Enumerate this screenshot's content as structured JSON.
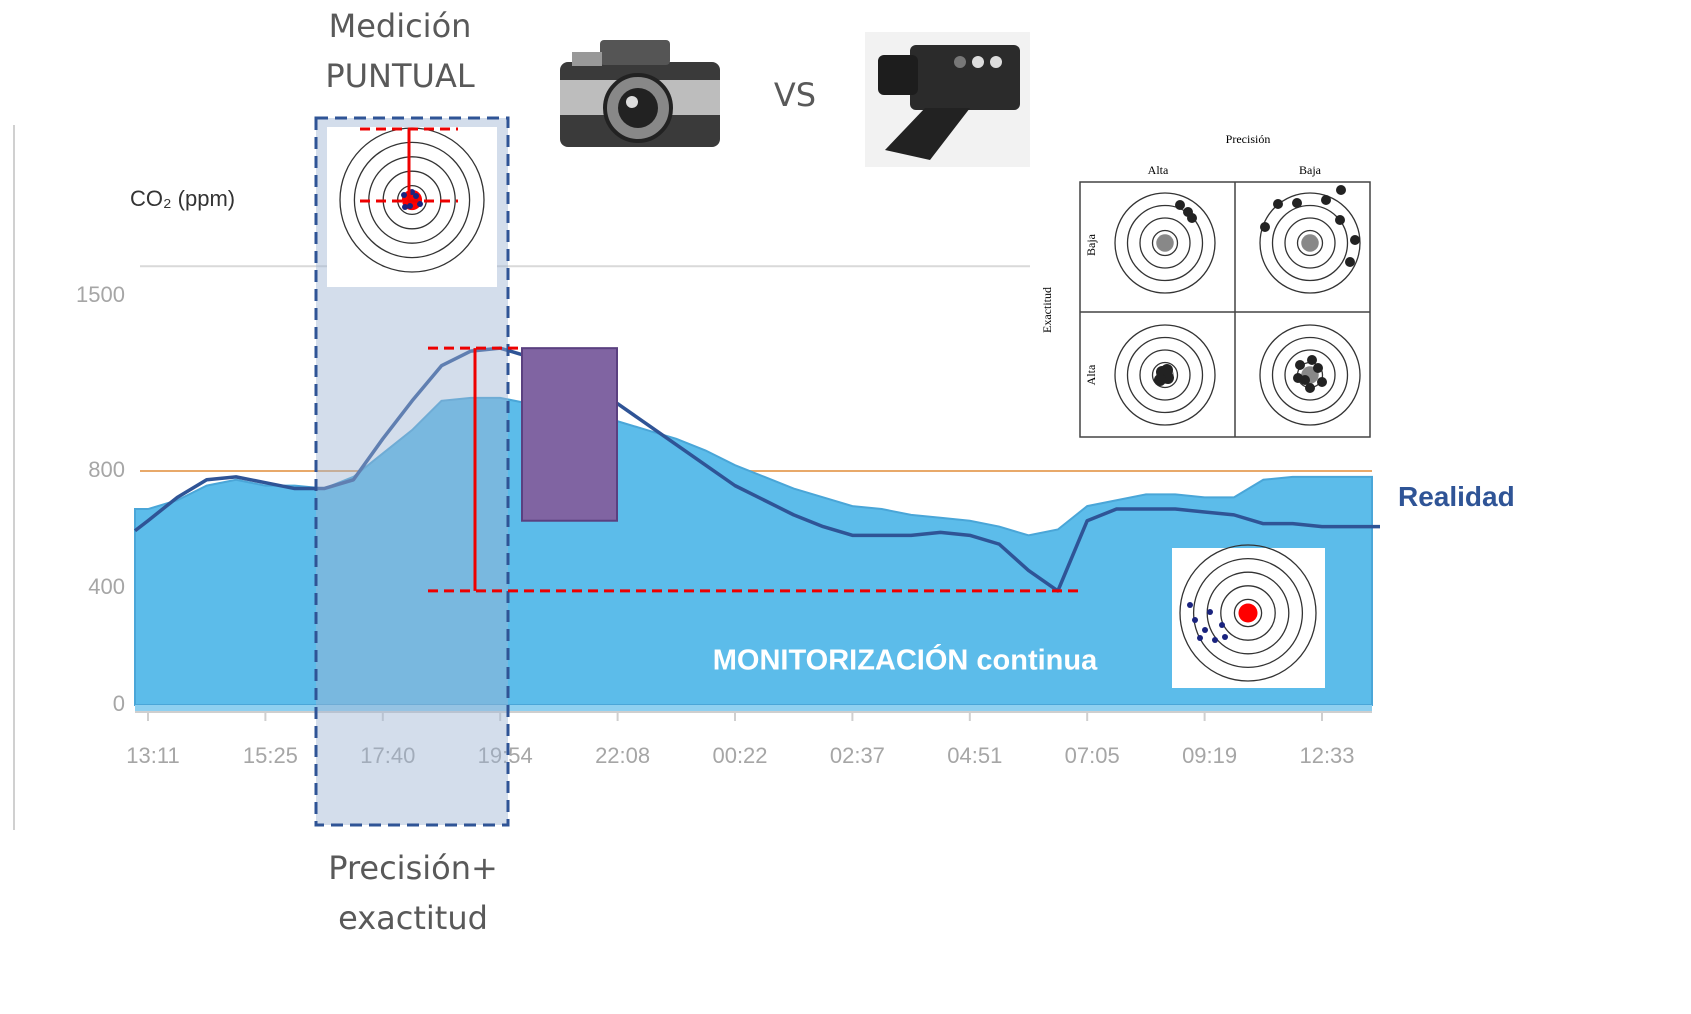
{
  "chart_data": {
    "type": "line",
    "y_label": "CO₂ (ppm)",
    "categories": [
      "13:11",
      null,
      null,
      null,
      "15:25",
      null,
      null,
      null,
      "17:40",
      null,
      null,
      null,
      "19:54",
      null,
      null,
      null,
      "22:08",
      null,
      null,
      null,
      "00:22",
      null,
      null,
      null,
      "02:37",
      null,
      null,
      null,
      "04:51",
      null,
      null,
      null,
      "07:05",
      null,
      null,
      null,
      "09:19",
      null,
      null,
      null,
      "12:33"
    ],
    "series": [
      {
        "type": "area",
        "color": "#5cbcea",
        "values": [
          670,
          700,
          750,
          770,
          750,
          750,
          740,
          780,
          860,
          940,
          1040,
          1050,
          1050,
          1030,
          1010,
          990,
          970,
          940,
          910,
          870,
          820,
          780,
          740,
          710,
          680,
          670,
          650,
          640,
          630,
          610,
          580,
          600,
          680,
          700,
          720,
          720,
          710,
          710,
          770,
          780,
          780
        ]
      },
      {
        "name": "Realidad",
        "type": "line",
        "color": "#2f5496",
        "values": [
          630,
          710,
          770,
          780,
          760,
          740,
          740,
          770,
          910,
          1040,
          1160,
          1210,
          1220,
          1190,
          1130,
          1080,
          1030,
          960,
          890,
          820,
          750,
          700,
          650,
          610,
          580,
          580,
          580,
          590,
          580,
          550,
          460,
          390,
          630,
          670,
          670,
          670,
          660,
          650,
          620,
          620,
          610
        ]
      }
    ],
    "ylim": [
      0,
      1600
    ],
    "yticks": [
      0,
      400,
      800,
      1500
    ],
    "grid": true,
    "reference_line": {
      "value": 800,
      "color": "#e8a96a"
    },
    "highlight_range": {
      "low": 630,
      "high": 1220,
      "color": "#8064a2"
    }
  },
  "slide": {
    "point_title": [
      "Medición",
      "PUNTUAL"
    ],
    "versus": "VS",
    "point_caption": [
      "Precisión+",
      "exactitud"
    ],
    "monitoring": "MONITORIZACIÓN continua",
    "matrix": {
      "title": "Precisión",
      "col_high": "Alta",
      "col_low": "Baja",
      "row_title": "Exactitud",
      "row_low": "Baja",
      "row_high": "Alta"
    }
  }
}
